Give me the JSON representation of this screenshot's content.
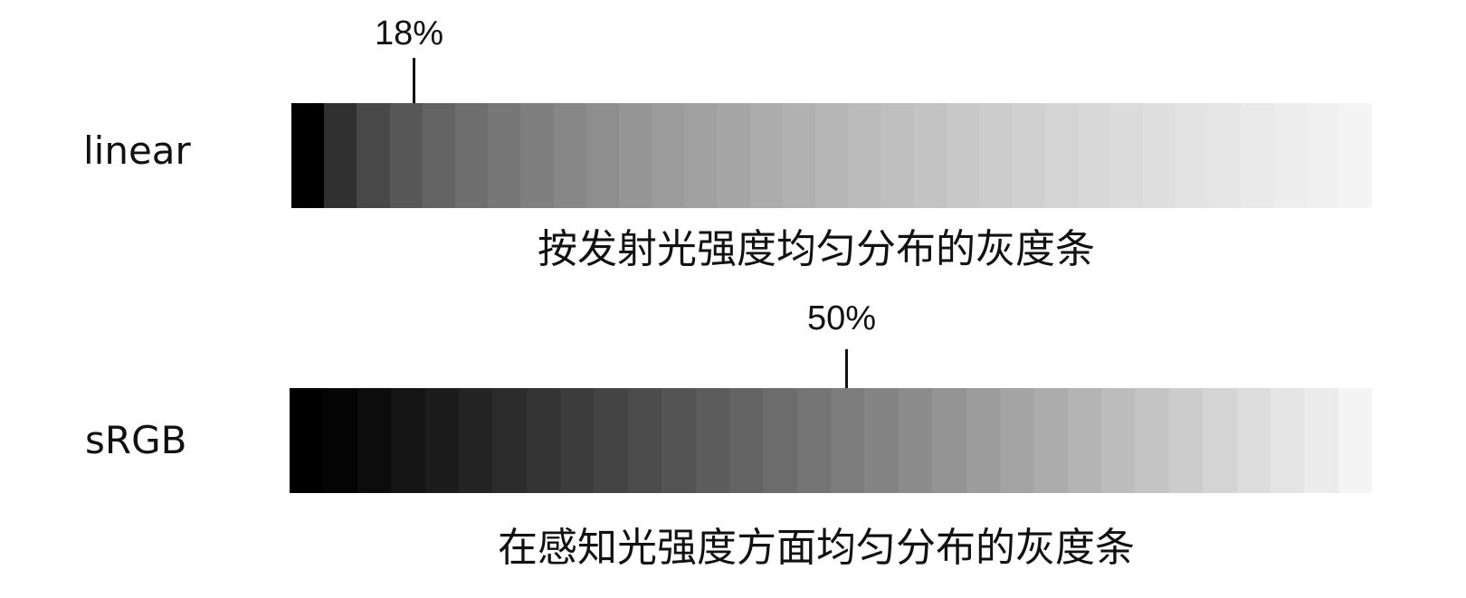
{
  "rows": [
    {
      "label": "linear",
      "marker_label": "18%",
      "marker_value_percent": 18,
      "caption": "按发射光强度均匀分布的灰度条",
      "gray_levels": [
        0,
        48,
        72,
        88,
        100,
        110,
        119,
        127,
        135,
        142,
        149,
        155,
        161,
        166,
        172,
        177,
        182,
        186,
        191,
        195,
        200,
        204,
        208,
        212,
        216,
        219,
        223,
        227,
        230,
        234,
        237,
        240,
        244
      ]
    },
    {
      "label": "sRGB",
      "marker_label": "50%",
      "marker_value_percent": 50,
      "caption": "在感知光强度方面均匀分布的灰度条",
      "gray_levels": [
        0,
        4,
        12,
        20,
        28,
        36,
        44,
        52,
        60,
        68,
        76,
        84,
        92,
        100,
        108,
        116,
        124,
        132,
        140,
        148,
        156,
        164,
        172,
        180,
        188,
        196,
        204,
        212,
        220,
        228,
        236,
        244
      ]
    }
  ]
}
